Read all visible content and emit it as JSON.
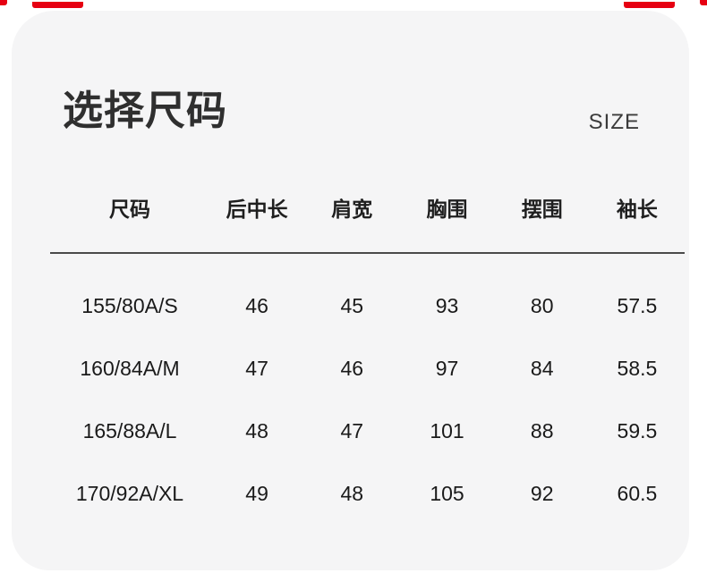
{
  "page": {
    "title": "选择尺码",
    "size_label": "SIZE"
  },
  "size_table": {
    "columns": [
      "尺码",
      "后中长",
      "肩宽",
      "胸围",
      "摆围",
      "袖长"
    ],
    "rows": [
      [
        "155/80A/S",
        "46",
        "45",
        "93",
        "80",
        "57.5"
      ],
      [
        "160/84A/M",
        "47",
        "46",
        "97",
        "84",
        "58.5"
      ],
      [
        "165/88A/L",
        "48",
        "47",
        "101",
        "88",
        "59.5"
      ],
      [
        "170/92A/XL",
        "49",
        "48",
        "105",
        "92",
        "60.5"
      ]
    ]
  },
  "colors": {
    "page_background": "#ffffff",
    "card_background": "#f5f5f6",
    "title_text": "#2f2f2f",
    "body_text": "#1a1a1a",
    "divider": "#4a4a4a",
    "trim_red": "#e60012"
  }
}
